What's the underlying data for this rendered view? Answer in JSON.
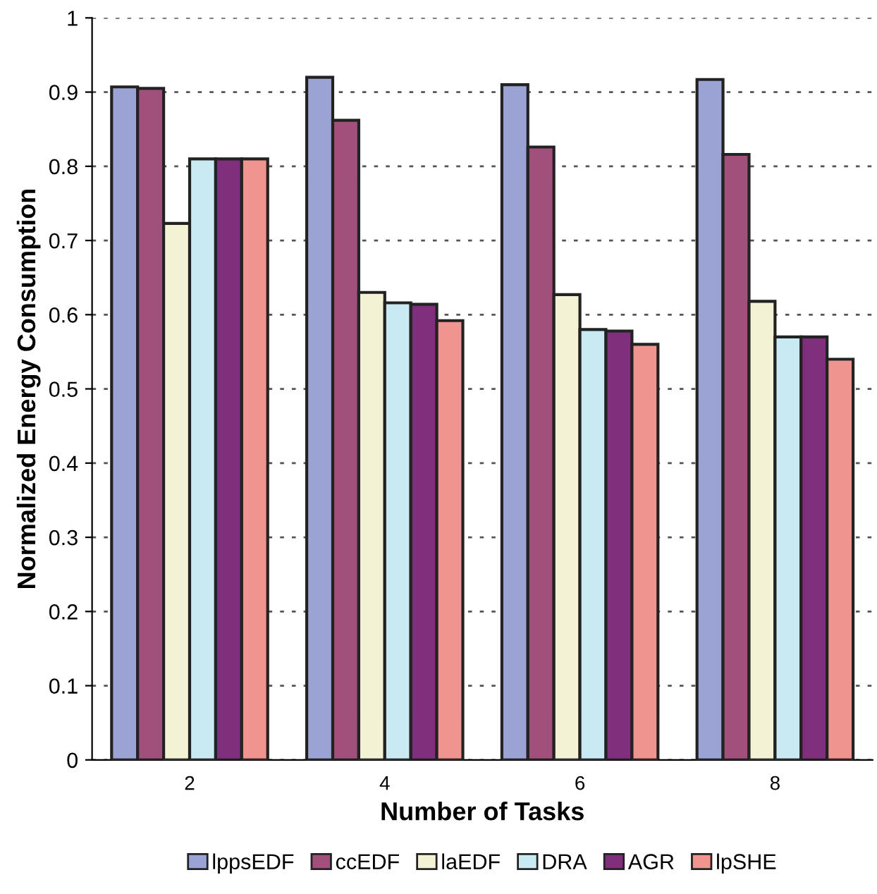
{
  "chart_data": {
    "type": "bar",
    "xlabel": "Number of Tasks",
    "ylabel": "Normalized Energy Consumption",
    "categories": [
      "2",
      "4",
      "6",
      "8"
    ],
    "series": [
      {
        "name": "lppsEDF",
        "color": "#9aa3d4",
        "values": [
          0.907,
          0.92,
          0.91,
          0.917
        ]
      },
      {
        "name": "ccEDF",
        "color": "#a0507a",
        "values": [
          0.905,
          0.862,
          0.826,
          0.816
        ]
      },
      {
        "name": "laEDF",
        "color": "#f3f2d4",
        "values": [
          0.723,
          0.63,
          0.627,
          0.618
        ]
      },
      {
        "name": "DRA",
        "color": "#c9e9f3",
        "values": [
          0.81,
          0.616,
          0.58,
          0.57
        ]
      },
      {
        "name": "AGR",
        "color": "#7f2f7c",
        "values": [
          0.81,
          0.614,
          0.578,
          0.57
        ]
      },
      {
        "name": "lpSHE",
        "color": "#f09490",
        "values": [
          0.81,
          0.592,
          0.56,
          0.54
        ]
      }
    ],
    "ylim": [
      0,
      1
    ],
    "yticks": [
      0,
      0.1,
      0.2,
      0.3,
      0.4,
      0.5,
      0.6,
      0.7,
      0.8,
      0.9,
      1
    ],
    "grid": "y",
    "legend": "bottom"
  }
}
